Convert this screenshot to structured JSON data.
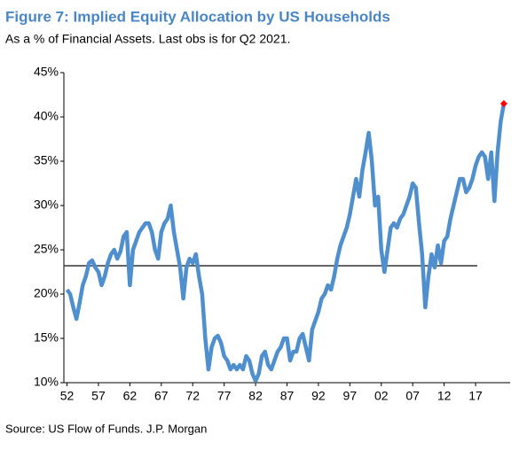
{
  "chart_data": {
    "type": "line",
    "title": "Figure 7: Implied Equity Allocation by US Households",
    "subtitle": "As a % of Financial Assets. Last obs is for Q2 2021.",
    "source": "Source: US Flow of Funds. J.P. Morgan",
    "x": [
      1952,
      1952.5,
      1953,
      1953.5,
      1954,
      1954.5,
      1955,
      1955.5,
      1956,
      1956.5,
      1957,
      1957.5,
      1958,
      1958.5,
      1959,
      1959.5,
      1960,
      1960.5,
      1961,
      1961.5,
      1962,
      1962.5,
      1963,
      1963.5,
      1964,
      1964.5,
      1965,
      1965.5,
      1966,
      1966.5,
      1967,
      1967.5,
      1968,
      1968.5,
      1969,
      1969.5,
      1970,
      1970.5,
      1971,
      1971.5,
      1972,
      1972.5,
      1973,
      1973.5,
      1974,
      1974.5,
      1975,
      1975.5,
      1976,
      1976.5,
      1977,
      1977.5,
      1978,
      1978.5,
      1979,
      1979.5,
      1980,
      1980.5,
      1981,
      1981.5,
      1982,
      1982.5,
      1983,
      1983.5,
      1984,
      1984.5,
      1985,
      1985.5,
      1986,
      1986.5,
      1987,
      1987.5,
      1988,
      1988.5,
      1989,
      1989.5,
      1990,
      1990.5,
      1991,
      1991.5,
      1992,
      1992.5,
      1993,
      1993.5,
      1994,
      1994.5,
      1995,
      1995.5,
      1996,
      1996.5,
      1997,
      1997.5,
      1998,
      1998.5,
      1999,
      1999.5,
      2000,
      2000.5,
      2001,
      2001.5,
      2002,
      2002.5,
      2003,
      2003.5,
      2004,
      2004.5,
      2005,
      2005.5,
      2006,
      2006.5,
      2007,
      2007.5,
      2008,
      2008.5,
      2009,
      2009.5,
      2010,
      2010.5,
      2011,
      2011.5,
      2012,
      2012.5,
      2013,
      2013.5,
      2014,
      2014.5,
      2015,
      2015.5,
      2016,
      2016.5,
      2017,
      2017.5,
      2018,
      2018.5,
      2019,
      2019.5,
      2020,
      2020.5,
      2021,
      2021.5
    ],
    "series": [
      {
        "color": "#4f8fce",
        "values": [
          20.5,
          20,
          18.5,
          17.2,
          19,
          21,
          22,
          23.5,
          23.8,
          23,
          22.5,
          21,
          22,
          23.5,
          24.5,
          25,
          24,
          24.8,
          26.5,
          27,
          21,
          25,
          26,
          27,
          27.5,
          28,
          28,
          27,
          25,
          24,
          27,
          28,
          28.5,
          30,
          27,
          25,
          23,
          19.5,
          23,
          24,
          23.5,
          24.5,
          22,
          20,
          15,
          11.5,
          14,
          15,
          15.3,
          14.5,
          13,
          12.5,
          11.5,
          12,
          11.5,
          12,
          11.5,
          13,
          12.5,
          11,
          10.2,
          11,
          13,
          13.5,
          12,
          11.5,
          12.5,
          13.5,
          14,
          15,
          15,
          12.5,
          13.5,
          13.5,
          15,
          15.5,
          14,
          12.5,
          16,
          17,
          18,
          19.5,
          20,
          21,
          20.5,
          22,
          24,
          25.5,
          26.5,
          27.5,
          29,
          31,
          33,
          31,
          34,
          36,
          38.2,
          35,
          30,
          31,
          25,
          22.5,
          25,
          27.5,
          28,
          27.5,
          28.5,
          29,
          30,
          31,
          32.5,
          32,
          28,
          24.5,
          18.5,
          22,
          24.5,
          23,
          25.5,
          23.5,
          26,
          26.5,
          28.5,
          30,
          31.5,
          33,
          33,
          31.5,
          32,
          33,
          34.5,
          35.5,
          36,
          35.5,
          33,
          36,
          30.5,
          36,
          39.5,
          41.5
        ]
      }
    ],
    "last_point_color": "#ff0000",
    "reference_line": {
      "value": 23.2,
      "color": "#333333"
    },
    "xlim": [
      1951.5,
      2022.5
    ],
    "xticks": [
      {
        "value": 1952,
        "label": "52"
      },
      {
        "value": 1957,
        "label": "57"
      },
      {
        "value": 1962,
        "label": "62"
      },
      {
        "value": 1967,
        "label": "67"
      },
      {
        "value": 1972,
        "label": "72"
      },
      {
        "value": 1977,
        "label": "77"
      },
      {
        "value": 1982,
        "label": "82"
      },
      {
        "value": 1987,
        "label": "87"
      },
      {
        "value": 1992,
        "label": "92"
      },
      {
        "value": 1997,
        "label": "97"
      },
      {
        "value": 2002,
        "label": "02"
      },
      {
        "value": 2007,
        "label": "07"
      },
      {
        "value": 2012,
        "label": "12"
      },
      {
        "value": 2017,
        "label": "17"
      }
    ],
    "ylim": [
      10,
      45
    ],
    "yticks": [
      {
        "value": 10,
        "label": "10%"
      },
      {
        "value": 15,
        "label": "15%"
      },
      {
        "value": 20,
        "label": "20%"
      },
      {
        "value": 25,
        "label": "25%"
      },
      {
        "value": 30,
        "label": "30%"
      },
      {
        "value": 35,
        "label": "35%"
      },
      {
        "value": 40,
        "label": "40%"
      },
      {
        "value": 45,
        "label": "45%"
      }
    ]
  }
}
